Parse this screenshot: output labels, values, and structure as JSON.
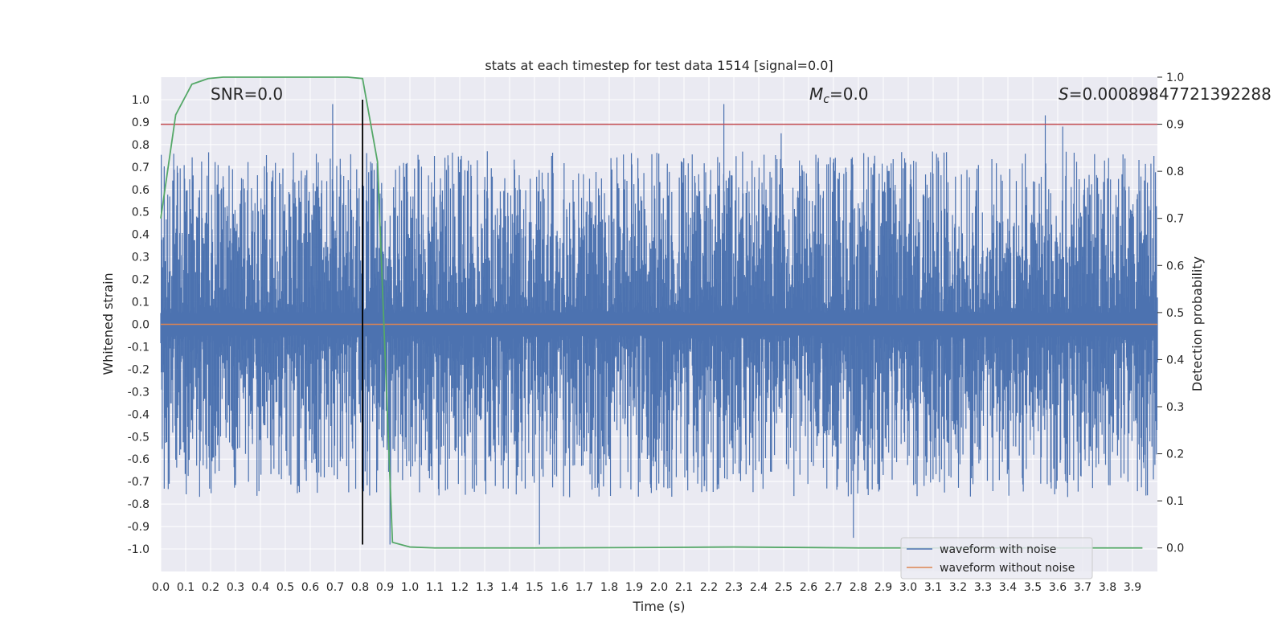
{
  "chart_data": {
    "type": "line",
    "title": "stats at each timestep for test data 1514 [signal=0.0]",
    "xlabel": "Time (s)",
    "ylabel": "Whitened strain",
    "y2label": "Detection probability",
    "xlim": [
      0.0,
      4.0
    ],
    "ylim": [
      -1.1,
      1.1
    ],
    "y2lim": [
      -0.05,
      1.0
    ],
    "grid": true,
    "background": "#eaeaf2",
    "x_ticks": [
      "0.0",
      "0.1",
      "0.2",
      "0.3",
      "0.4",
      "0.5",
      "0.6",
      "0.7",
      "0.8",
      "0.9",
      "1.0",
      "1.1",
      "1.2",
      "1.3",
      "1.4",
      "1.5",
      "1.6",
      "1.7",
      "1.8",
      "1.9",
      "2.0",
      "2.1",
      "2.2",
      "2.3",
      "2.4",
      "2.5",
      "2.6",
      "2.7",
      "2.8",
      "2.9",
      "3.0",
      "3.1",
      "3.2",
      "3.3",
      "3.4",
      "3.5",
      "3.6",
      "3.7",
      "3.8",
      "3.9"
    ],
    "y_ticks": [
      "1.0",
      "0.9",
      "0.8",
      "0.7",
      "0.6",
      "0.5",
      "0.4",
      "0.3",
      "0.2",
      "0.1",
      "0.0",
      "-0.1",
      "-0.2",
      "-0.3",
      "-0.4",
      "-0.5",
      "-0.6",
      "-0.7",
      "-0.8",
      "-0.9",
      "-1.0"
    ],
    "y2_ticks": [
      "1.0",
      "0.9",
      "0.8",
      "0.7",
      "0.6",
      "0.5",
      "0.4",
      "0.3",
      "0.2",
      "0.1",
      "0.0"
    ],
    "annotations": {
      "snr": "SNR=0.0",
      "mc_symbol": "M",
      "mc_sub": "c",
      "mc_value": "=0.0",
      "s_symbol": "S",
      "s_value": "=0.00089847721392288"
    },
    "series": [
      {
        "name": "waveform with noise",
        "color": "#4c72b0",
        "kind": "noise",
        "approx_amplitude_range": [
          -1.0,
          1.0
        ],
        "peaks": [
          {
            "x": 0.69,
            "y": 0.98
          },
          {
            "x": 2.26,
            "y": 0.98
          },
          {
            "x": 2.49,
            "y": 0.85
          },
          {
            "x": 3.55,
            "y": 0.93
          },
          {
            "x": 3.62,
            "y": 0.88
          },
          {
            "x": 1.52,
            "y": -0.98
          },
          {
            "x": 0.92,
            "y": -0.98
          },
          {
            "x": 2.78,
            "y": -0.95
          }
        ]
      },
      {
        "name": "waveform without noise",
        "color": "#dd8452",
        "x": [
          0.0,
          4.0
        ],
        "y": [
          0.0,
          0.0
        ]
      },
      {
        "color": "#55a868",
        "axis": "right",
        "x": [
          0.0,
          0.06,
          0.125,
          0.19,
          0.25,
          0.3,
          0.4,
          0.5,
          0.6,
          0.7,
          0.75,
          0.81,
          0.87,
          0.93,
          1.0,
          1.1,
          1.5,
          2.0,
          2.3,
          2.8,
          3.5,
          3.94
        ],
        "y": [
          0.7,
          0.92,
          0.985,
          0.997,
          1.0,
          1.0,
          1.0,
          1.0,
          1.0,
          1.0,
          1.0,
          0.997,
          0.82,
          0.012,
          0.002,
          0.0,
          0.0,
          0.001,
          0.002,
          0.0,
          0.0,
          0.0
        ]
      }
    ],
    "threshold_right": 0.9,
    "threshold_color": "#c44e52",
    "marker_x": 0.81,
    "marker_range": [
      -0.98,
      1.0
    ],
    "marker_color": "#000000",
    "legend_position": "bottom-right"
  }
}
